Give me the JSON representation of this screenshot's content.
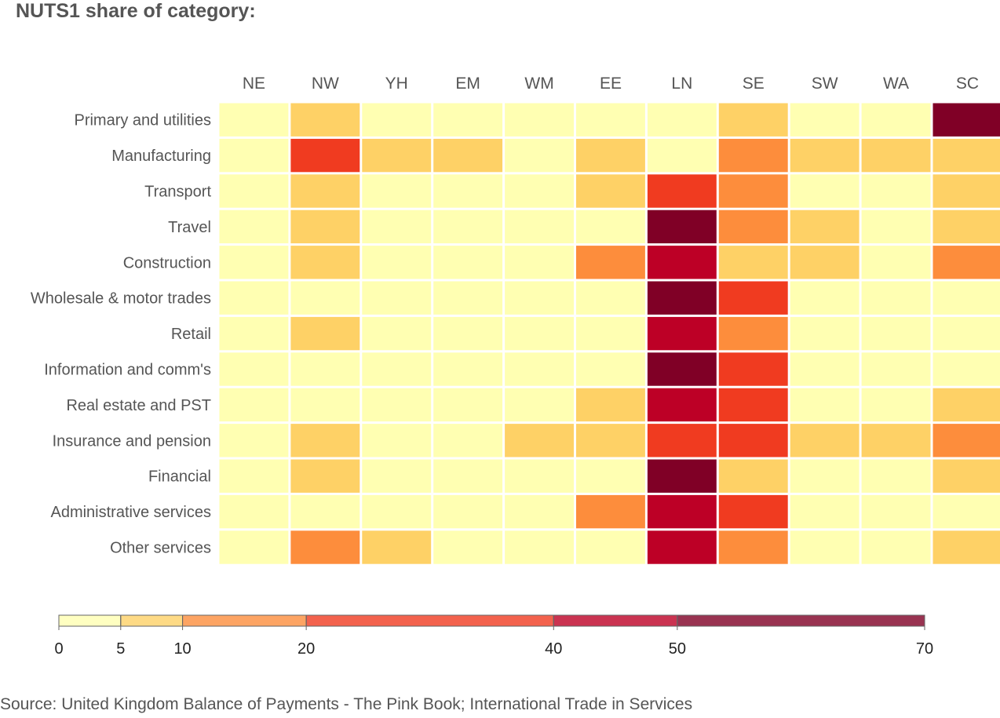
{
  "chart_data": {
    "type": "heatmap",
    "title": "NUTS1 share of category:",
    "columns": [
      "NE",
      "NW",
      "YH",
      "EM",
      "WM",
      "EE",
      "LN",
      "SE",
      "SW",
      "WA",
      "SC"
    ],
    "rows": [
      "Primary and utilities",
      "Manufacturing",
      "Transport",
      "Travel",
      "Construction",
      "Wholesale & motor trades",
      "Retail",
      "Information and comm's",
      "Real estate and PST",
      "Insurance and pension",
      "Financial",
      "Administrative services",
      "Other services"
    ],
    "values": [
      [
        2,
        7,
        2,
        3,
        2,
        3,
        4,
        8,
        2,
        3,
        60
      ],
      [
        2,
        25,
        7,
        7,
        3,
        7,
        4,
        15,
        7,
        7,
        7
      ],
      [
        2,
        7,
        2,
        2,
        2,
        7,
        25,
        15,
        2,
        2,
        7
      ],
      [
        2,
        7,
        2,
        2,
        2,
        3,
        60,
        15,
        7,
        2,
        7
      ],
      [
        2,
        7,
        2,
        2,
        2,
        15,
        45,
        8,
        7,
        2,
        15
      ],
      [
        2,
        3,
        2,
        2,
        2,
        3,
        60,
        25,
        2,
        2,
        3
      ],
      [
        2,
        7,
        2,
        2,
        2,
        3,
        45,
        15,
        2,
        2,
        3
      ],
      [
        2,
        3,
        2,
        2,
        2,
        3,
        60,
        25,
        2,
        2,
        3
      ],
      [
        2,
        3,
        2,
        2,
        2,
        7,
        45,
        25,
        2,
        2,
        7
      ],
      [
        2,
        7,
        2,
        2,
        7,
        7,
        25,
        25,
        7,
        7,
        15
      ],
      [
        2,
        7,
        2,
        2,
        2,
        3,
        60,
        8,
        2,
        2,
        7
      ],
      [
        2,
        3,
        2,
        2,
        2,
        15,
        45,
        25,
        2,
        2,
        3
      ],
      [
        2,
        15,
        7,
        2,
        2,
        3,
        45,
        15,
        2,
        2,
        7
      ]
    ],
    "legend": {
      "breaks": [
        0,
        5,
        10,
        20,
        40,
        50,
        70
      ],
      "labels": [
        "0",
        "5",
        "10",
        "20",
        "40",
        "50",
        "70"
      ],
      "colors": [
        "#ffffb2",
        "#fed166",
        "#fd8d3c",
        "#f03b20",
        "#bd0026",
        "#800026"
      ]
    }
  },
  "source": "Source: United Kingdom Balance of Payments - The Pink Book; International Trade in Services"
}
